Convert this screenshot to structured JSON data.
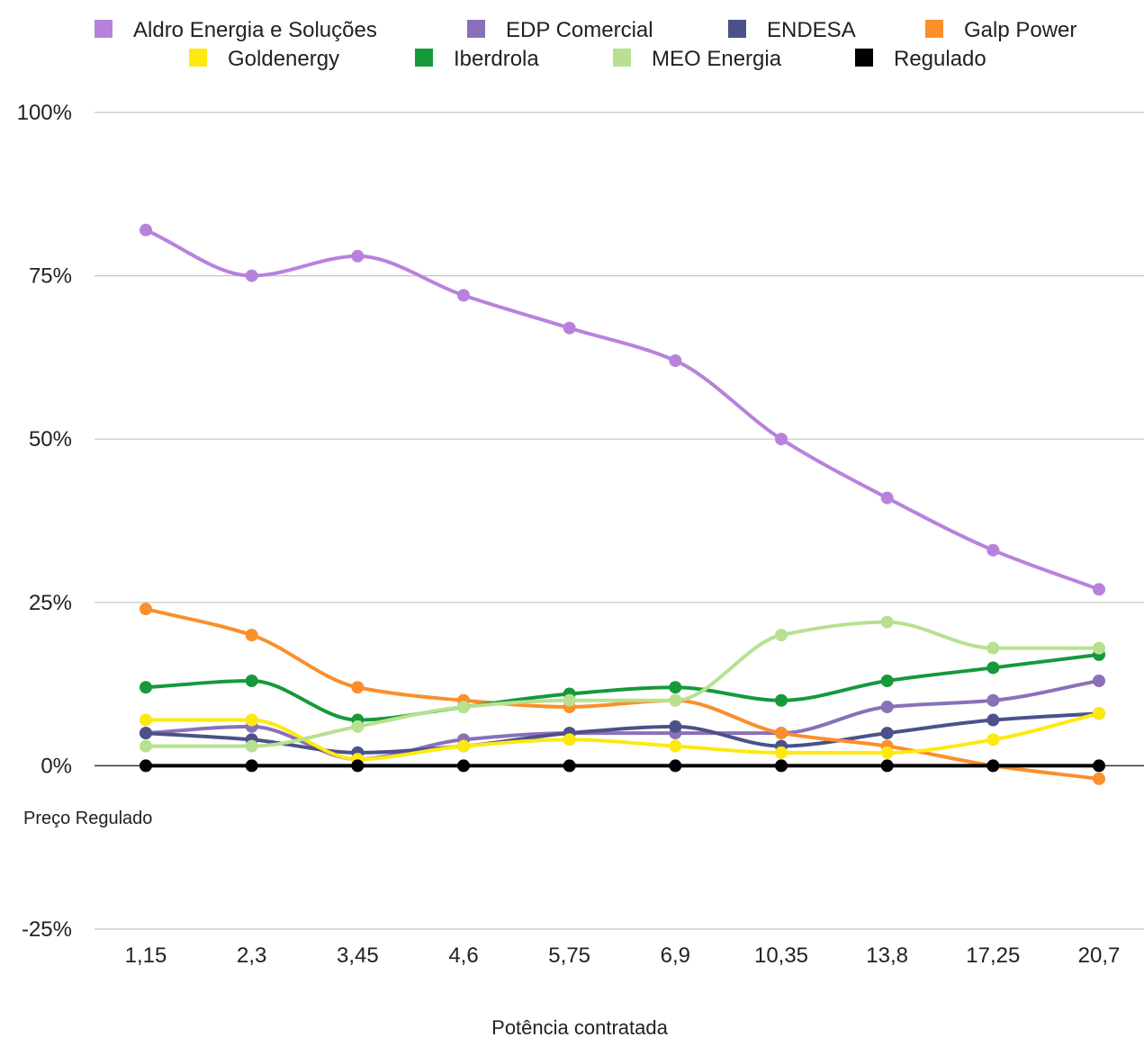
{
  "chart_data": {
    "type": "line",
    "xlabel": "Potência contratada",
    "ylabel": "",
    "categories": [
      "1,15",
      "2,3",
      "3,45",
      "4,6",
      "5,75",
      "6,9",
      "10,35",
      "13,8",
      "17,25",
      "20,7"
    ],
    "ylim": [
      -25,
      100
    ],
    "yticks": [
      -25,
      0,
      25,
      50,
      75,
      100
    ],
    "ytick_labels": [
      "-25%",
      "0%",
      "25%",
      "50%",
      "75%",
      "100%"
    ],
    "grid": true,
    "legend_position": "top",
    "annotation": "Preço Regulado",
    "series": [
      {
        "name": "Aldro Energia e Soluções",
        "color": "#b882dc",
        "values": [
          82,
          75,
          78,
          72,
          67,
          62,
          50,
          41,
          33,
          27
        ]
      },
      {
        "name": "EDP Comercial",
        "color": "#8a70b8",
        "values": [
          5,
          6,
          1,
          4,
          5,
          5,
          5,
          9,
          10,
          13
        ]
      },
      {
        "name": "ENDESA",
        "color": "#4b5189",
        "values": [
          5,
          4,
          2,
          3,
          5,
          6,
          3,
          5,
          7,
          8
        ]
      },
      {
        "name": "Galp Power",
        "color": "#fb8f2b",
        "values": [
          24,
          20,
          12,
          10,
          9,
          10,
          5,
          3,
          0,
          -2
        ]
      },
      {
        "name": "Goldenergy",
        "color": "#fde910",
        "values": [
          7,
          7,
          1,
          3,
          4,
          3,
          2,
          2,
          4,
          8
        ]
      },
      {
        "name": "Iberdrola",
        "color": "#16993b",
        "values": [
          12,
          13,
          7,
          9,
          11,
          12,
          10,
          13,
          15,
          17
        ]
      },
      {
        "name": "MEO Energia",
        "color": "#b7e190",
        "values": [
          3,
          3,
          6,
          9,
          10,
          10,
          20,
          22,
          18,
          18
        ]
      },
      {
        "name": "Regulado",
        "color": "#000000",
        "values": [
          0,
          0,
          0,
          0,
          0,
          0,
          0,
          0,
          0,
          0
        ]
      }
    ]
  }
}
